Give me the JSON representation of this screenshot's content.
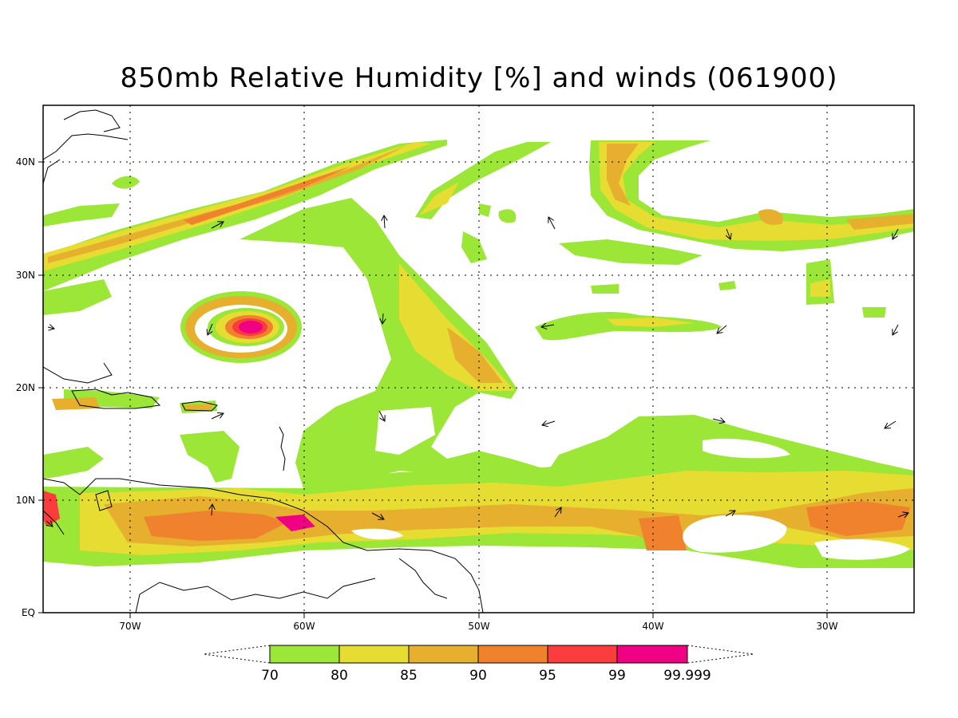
{
  "title": "850mb Relative Humidity [%] and winds (061900)",
  "colors": {
    "c70": "#9be637",
    "c80": "#e6dc32",
    "c85": "#e6af2d",
    "c90": "#f0822d",
    "c95": "#fa3c3c",
    "c99": "#f00082",
    "land": "#000000",
    "grid": "#000000"
  },
  "lat_labels": [
    "40N",
    "30N",
    "20N",
    "10N",
    "EQ"
  ],
  "lon_labels": [
    "70W",
    "60W",
    "50W",
    "40W",
    "30W"
  ],
  "colorbar": {
    "labels": [
      "70",
      "80",
      "85",
      "90",
      "95",
      "99",
      "99.999"
    ]
  },
  "chart_data": {
    "type": "heatmap",
    "variable": "850mb Relative Humidity",
    "units": "%",
    "lon_range": [
      -75,
      -25
    ],
    "lat_range": [
      0,
      45
    ],
    "levels": [
      70,
      80,
      85,
      90,
      95,
      99,
      99.999
    ],
    "grid": true,
    "overlay": "wind vectors"
  }
}
